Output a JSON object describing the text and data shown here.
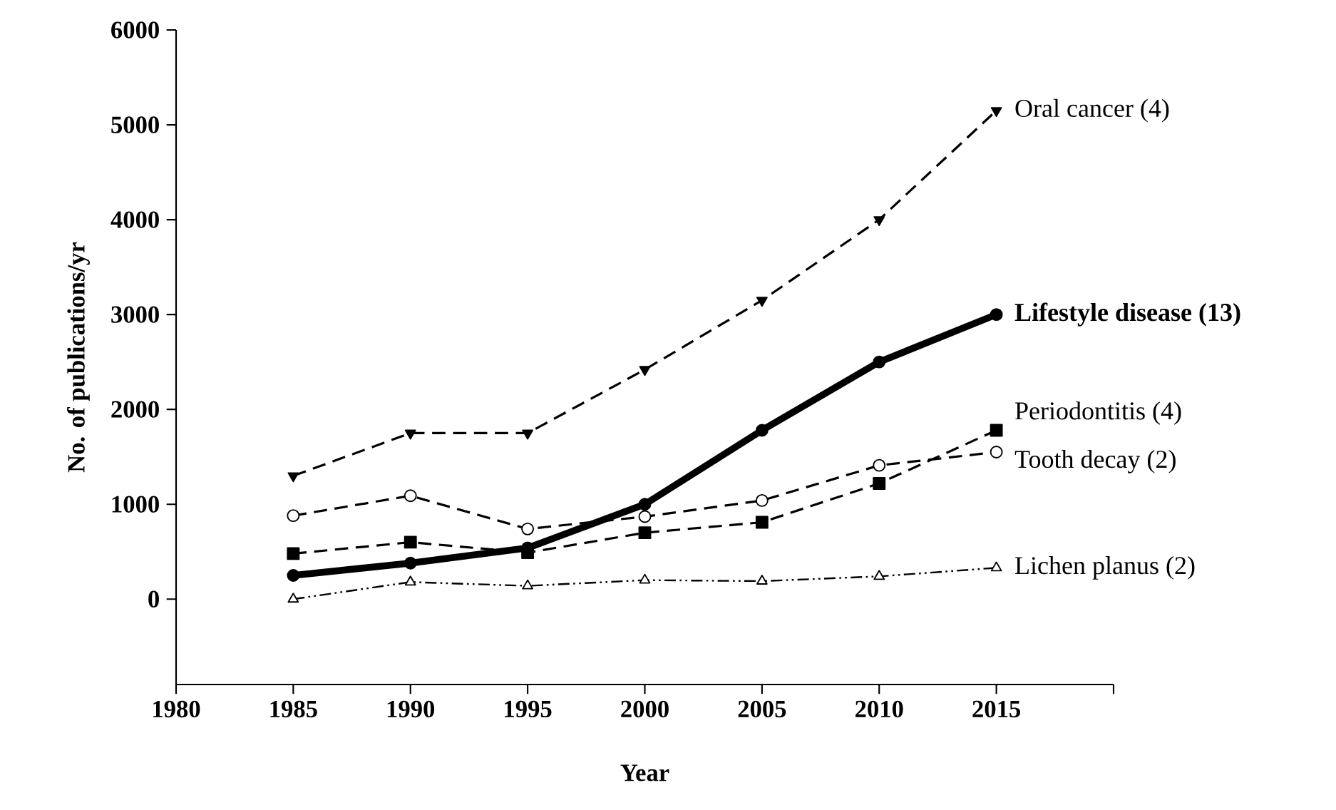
{
  "chart_data": {
    "type": "line",
    "xlabel": "Year",
    "ylabel": "No. of publications/yr",
    "x": [
      1985,
      1990,
      1995,
      2000,
      2005,
      2010,
      2015
    ],
    "xlim": [
      1980,
      2020
    ],
    "xticks": [
      1980,
      1985,
      1990,
      1995,
      2000,
      2005,
      2010,
      2015,
      {
        "value": 2020,
        "label": null
      }
    ],
    "ylim": [
      -900,
      6000
    ],
    "yticks": [
      0,
      1000,
      2000,
      3000,
      4000,
      5000,
      6000
    ],
    "legend": false,
    "grid": false,
    "series": [
      {
        "name": "Oral cancer (4)",
        "color": "#000000",
        "marker": "triangle",
        "line_style": "dashed",
        "values": [
          1300,
          1750,
          1750,
          2420,
          3150,
          4000,
          5150
        ]
      },
      {
        "name": "Lifestyle disease (13)",
        "color": "#000000",
        "marker": "circle",
        "line_style": "solid",
        "values": [
          250,
          380,
          540,
          1000,
          1780,
          2500,
          3000
        ]
      },
      {
        "name": "Periodontitis (4)",
        "color": "#000000",
        "marker": "square",
        "line_style": "dashed",
        "values": [
          480,
          600,
          490,
          700,
          810,
          1220,
          1780
        ]
      },
      {
        "name": "Tooth decay (2)",
        "color": "#000000",
        "marker": "circle",
        "line_style": "dashed",
        "values": [
          880,
          1090,
          740,
          870,
          1040,
          1410,
          1550
        ]
      },
      {
        "name": "Lichen planus (2)",
        "color": "#000000",
        "marker": "triangle",
        "line_style": "dotted",
        "values": [
          0,
          180,
          140,
          200,
          190,
          240,
          330
        ]
      }
    ]
  }
}
